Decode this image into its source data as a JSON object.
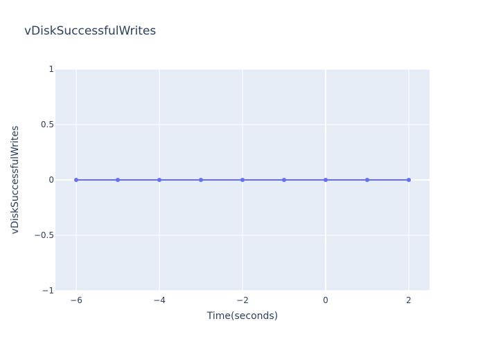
{
  "chart_data": {
    "type": "line",
    "title": "vDiskSuccessfulWrites",
    "xlabel": "Time(seconds)",
    "ylabel": "vDiskSuccessfulWrites",
    "x": [
      -6,
      -5,
      -4,
      -3,
      -2,
      -1,
      0,
      1,
      2
    ],
    "series": [
      {
        "values": [
          0,
          0,
          0,
          0,
          0,
          0,
          0,
          0,
          0
        ]
      }
    ],
    "xlim": [
      -6.5,
      2.5
    ],
    "ylim": [
      -1,
      1
    ],
    "x_ticks": [
      -6,
      -4,
      -2,
      0,
      2
    ],
    "x_tick_labels": [
      "−6",
      "−4",
      "−2",
      "0",
      "2"
    ],
    "y_ticks": [
      -1,
      -0.5,
      0,
      0.5,
      1
    ],
    "y_tick_labels": [
      "−1",
      "−0.5",
      "0",
      "0.5",
      "1"
    ],
    "grid": true,
    "legend": "none",
    "colors": {
      "plot_background": "#e5ecf6",
      "grid": "#ffffff",
      "line": "#636efa",
      "text": "#2a3f5f"
    }
  }
}
